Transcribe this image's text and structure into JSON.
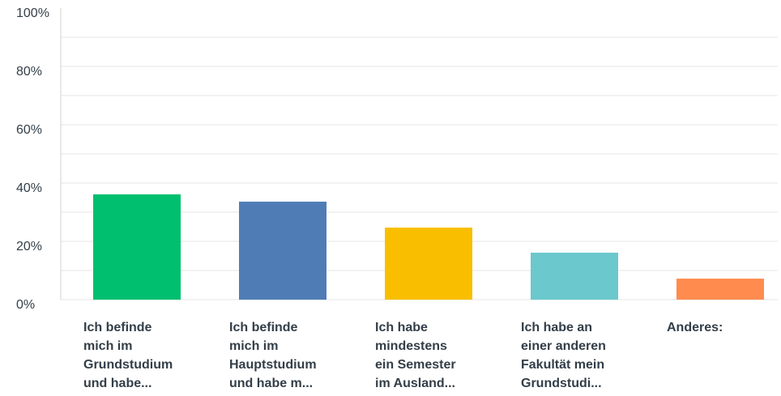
{
  "chart_data": {
    "type": "bar",
    "categories": [
      "Ich befinde\nmich im\nGrundstudium\nund habe...",
      "Ich befinde\nmich im\nHauptstudium\nund habe m...",
      "Ich habe\nmindestens\nein Semester\nim Ausland...",
      "Ich habe an\neiner anderen\nFakultät mein\nGrundstudi...",
      "Anderes:"
    ],
    "values": [
      36.1,
      33.6,
      24.7,
      16.1,
      7.2
    ],
    "colors": [
      "#00bf6f",
      "#507cb6",
      "#f9be00",
      "#6bc8cd",
      "#ff8b4f"
    ],
    "ylim": [
      0,
      100
    ],
    "yticks": [
      {
        "value": 0,
        "label": "0%"
      },
      {
        "value": 20,
        "label": "20%"
      },
      {
        "value": 40,
        "label": "40%"
      },
      {
        "value": 60,
        "label": "60%"
      },
      {
        "value": 80,
        "label": "80%"
      },
      {
        "value": 100,
        "label": "100%"
      }
    ],
    "minor_yticks": [
      10,
      30,
      50,
      70,
      90
    ],
    "grid": true
  }
}
